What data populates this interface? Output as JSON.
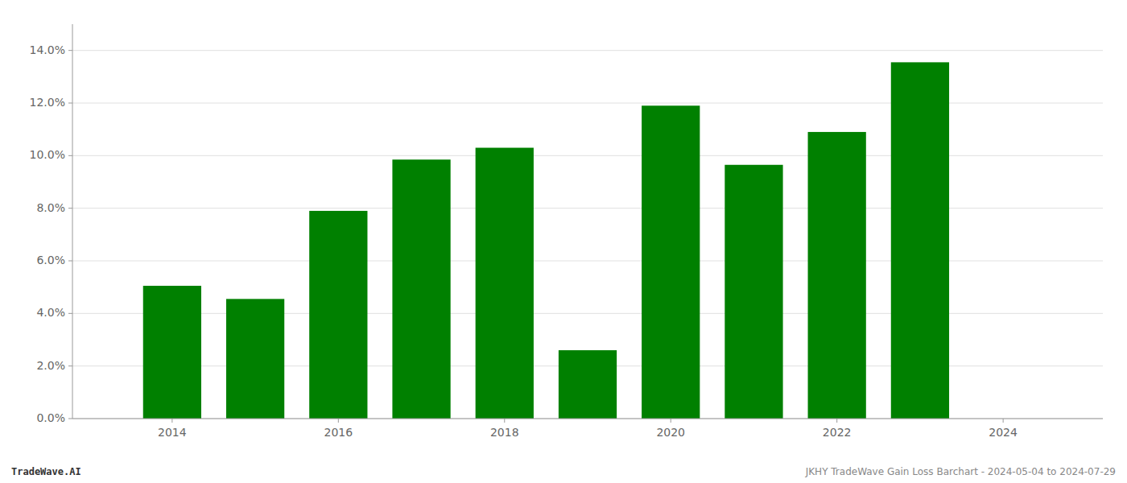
{
  "chart_data": {
    "type": "bar",
    "x": [
      2014,
      2015,
      2016,
      2017,
      2018,
      2019,
      2020,
      2021,
      2022,
      2023
    ],
    "values": [
      0.0505,
      0.0455,
      0.079,
      0.0985,
      0.103,
      0.026,
      0.119,
      0.0965,
      0.109,
      0.1355
    ],
    "color": "#008000",
    "xlim": [
      2012.8,
      2025.2
    ],
    "xticks": [
      2014,
      2016,
      2018,
      2020,
      2022,
      2024
    ],
    "ylim": [
      0,
      0.15
    ],
    "yticks": [
      {
        "value": 0.0,
        "label": "0.0%"
      },
      {
        "value": 0.02,
        "label": "2.0%"
      },
      {
        "value": 0.04,
        "label": "4.0%"
      },
      {
        "value": 0.06,
        "label": "6.0%"
      },
      {
        "value": 0.08,
        "label": "8.0%"
      },
      {
        "value": 0.1,
        "label": "10.0%"
      },
      {
        "value": 0.12,
        "label": "12.0%"
      },
      {
        "value": 0.14,
        "label": "14.0%"
      }
    ],
    "grid": true,
    "annotations": [
      "TradeWave.AI",
      "JKHY TradeWave Gain Loss Barchart - 2024-05-04 to 2024-07-29"
    ]
  }
}
